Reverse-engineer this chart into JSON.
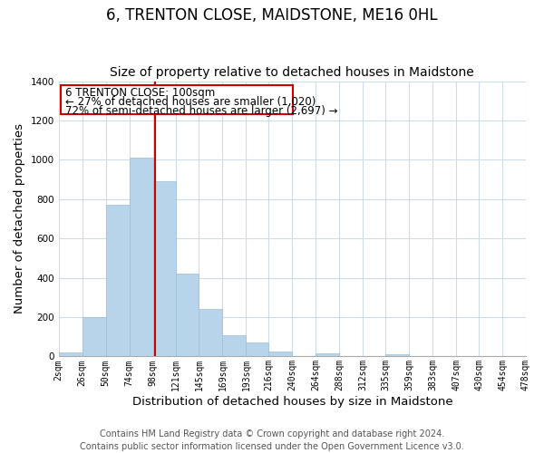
{
  "title": "6, TRENTON CLOSE, MAIDSTONE, ME16 0HL",
  "subtitle": "Size of property relative to detached houses in Maidstone",
  "xlabel": "Distribution of detached houses by size in Maidstone",
  "ylabel": "Number of detached properties",
  "bar_edges": [
    2,
    26,
    50,
    74,
    98,
    121,
    145,
    169,
    193,
    216,
    240,
    264,
    288,
    312,
    335,
    359,
    383,
    407,
    430,
    454,
    478
  ],
  "bar_heights": [
    20,
    200,
    770,
    1010,
    890,
    420,
    240,
    110,
    70,
    25,
    0,
    15,
    0,
    0,
    10,
    0,
    0,
    0,
    0,
    0
  ],
  "bar_color": "#b8d4ea",
  "bar_edgecolor": "#9bbfd8",
  "vline_x": 100,
  "vline_color": "#cc0000",
  "annotation_title": "6 TRENTON CLOSE: 100sqm",
  "annotation_line1": "← 27% of detached houses are smaller (1,020)",
  "annotation_line2": "72% of semi-detached houses are larger (2,697) →",
  "annotation_box_color": "#ffffff",
  "annotation_box_edgecolor": "#cc0000",
  "tick_labels": [
    "2sqm",
    "26sqm",
    "50sqm",
    "74sqm",
    "98sqm",
    "121sqm",
    "145sqm",
    "169sqm",
    "193sqm",
    "216sqm",
    "240sqm",
    "264sqm",
    "288sqm",
    "312sqm",
    "335sqm",
    "359sqm",
    "383sqm",
    "407sqm",
    "430sqm",
    "454sqm",
    "478sqm"
  ],
  "ylim": [
    0,
    1400
  ],
  "yticks": [
    0,
    200,
    400,
    600,
    800,
    1000,
    1200,
    1400
  ],
  "footer_line1": "Contains HM Land Registry data © Crown copyright and database right 2024.",
  "footer_line2": "Contains public sector information licensed under the Open Government Licence v3.0.",
  "bg_color": "#ffffff",
  "grid_color": "#ccdde8",
  "title_fontsize": 12,
  "subtitle_fontsize": 10,
  "axis_label_fontsize": 9.5,
  "tick_fontsize": 7,
  "footer_fontsize": 7,
  "ann_fontsize": 8.5
}
